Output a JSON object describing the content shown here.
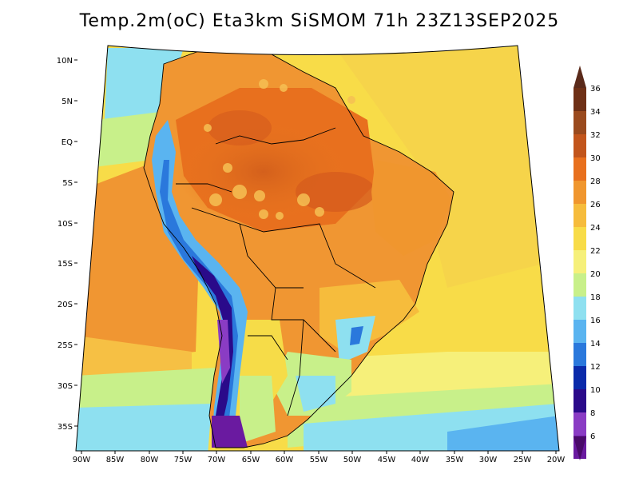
{
  "title": "Temp.2m(oC) Eta3km SiSMOM 71h 23Z13SEP2025",
  "map": {
    "variable": "2 m air temperature",
    "units": "oC",
    "latitude_ticks": [
      "10N",
      "5N",
      "EQ",
      "5S",
      "10S",
      "15S",
      "20S",
      "25S",
      "30S",
      "35S"
    ],
    "longitude_ticks": [
      "90W",
      "85W",
      "80W",
      "75W",
      "70W",
      "65W",
      "60W",
      "55W",
      "50W",
      "45W",
      "40W",
      "35W",
      "30W",
      "25W",
      "20W"
    ]
  },
  "colorbar": {
    "labels": [
      "36",
      "34",
      "32",
      "30",
      "28",
      "26",
      "24",
      "22",
      "20",
      "18",
      "16",
      "14",
      "12",
      "10",
      "8",
      "6"
    ],
    "top_color": "#5a2a1a",
    "bottom_color": "#4a0a6a",
    "colors": [
      "#6e3016",
      "#9a4a1e",
      "#c2551c",
      "#e8701e",
      "#f0962e",
      "#f6bc3c",
      "#f8dc48",
      "#f6f07a",
      "#c8f08a",
      "#8ee0f0",
      "#5ab4f0",
      "#2a78dc",
      "#0a2aaa",
      "#2a0a8a",
      "#8a3cc4",
      "#6a1aa0"
    ]
  }
}
